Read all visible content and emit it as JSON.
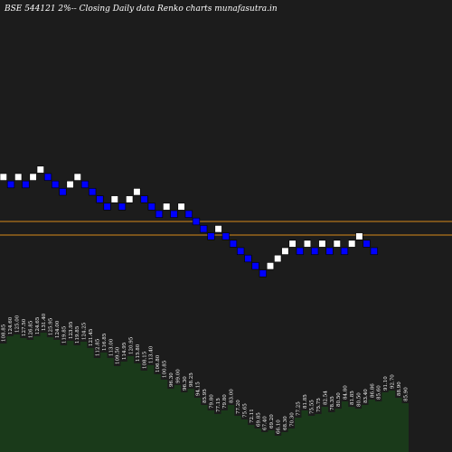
{
  "chart_data": {
    "type": "renko",
    "title": "BSE 544121 2%-- Closing Daily data Renko charts munafasutra.in",
    "colors": {
      "background": "#1c1c1c",
      "up_brick": "#ffffff",
      "down_brick": "#0000ff",
      "reference_line": "#d98a1a",
      "volume_area": "#1a3a1a"
    },
    "bricks": [
      {
        "dir": "up",
        "level": 0
      },
      {
        "dir": "down",
        "level": -1
      },
      {
        "dir": "up",
        "level": 0
      },
      {
        "dir": "down",
        "level": -1
      },
      {
        "dir": "up",
        "level": 0
      },
      {
        "dir": "up",
        "level": 1
      },
      {
        "dir": "down",
        "level": 0
      },
      {
        "dir": "down",
        "level": -1
      },
      {
        "dir": "down",
        "level": -2
      },
      {
        "dir": "up",
        "level": -1
      },
      {
        "dir": "up",
        "level": 0
      },
      {
        "dir": "down",
        "level": -1
      },
      {
        "dir": "down",
        "level": -2
      },
      {
        "dir": "down",
        "level": -3
      },
      {
        "dir": "down",
        "level": -4
      },
      {
        "dir": "up",
        "level": -3
      },
      {
        "dir": "down",
        "level": -4
      },
      {
        "dir": "up",
        "level": -3
      },
      {
        "dir": "up",
        "level": -2
      },
      {
        "dir": "down",
        "level": -3
      },
      {
        "dir": "down",
        "level": -4
      },
      {
        "dir": "down",
        "level": -5
      },
      {
        "dir": "up",
        "level": -4
      },
      {
        "dir": "down",
        "level": -5
      },
      {
        "dir": "up",
        "level": -4
      },
      {
        "dir": "down",
        "level": -5
      },
      {
        "dir": "down",
        "level": -6
      },
      {
        "dir": "down",
        "level": -7
      },
      {
        "dir": "down",
        "level": -8
      },
      {
        "dir": "up",
        "level": -7
      },
      {
        "dir": "down",
        "level": -8
      },
      {
        "dir": "down",
        "level": -9
      },
      {
        "dir": "down",
        "level": -10
      },
      {
        "dir": "down",
        "level": -11
      },
      {
        "dir": "down",
        "level": -12
      },
      {
        "dir": "down",
        "level": -13
      },
      {
        "dir": "up",
        "level": -12
      },
      {
        "dir": "up",
        "level": -11
      },
      {
        "dir": "up",
        "level": -10
      },
      {
        "dir": "up",
        "level": -9
      },
      {
        "dir": "down",
        "level": -10
      },
      {
        "dir": "up",
        "level": -9
      },
      {
        "dir": "down",
        "level": -10
      },
      {
        "dir": "up",
        "level": -9
      },
      {
        "dir": "down",
        "level": -10
      },
      {
        "dir": "up",
        "level": -9
      },
      {
        "dir": "down",
        "level": -10
      },
      {
        "dir": "up",
        "level": -9
      },
      {
        "dir": "up",
        "level": -8
      },
      {
        "dir": "down",
        "level": -9
      },
      {
        "dir": "down",
        "level": -10
      }
    ],
    "reference_lines": [
      121.4,
      118.25
    ],
    "price_labels": [
      "108.85",
      "124.60",
      "125.00",
      "127.50",
      "126.85",
      "124.65",
      "131.40",
      "125.95",
      "124.00",
      "119.85",
      "123.95",
      "119.85",
      "124.25",
      "121.45",
      "112.85",
      "116.85",
      "113.00",
      "109.50",
      "114.95",
      "120.95",
      "115.80",
      "108.15",
      "113.40",
      "106.80",
      "100.85",
      "96.30",
      "99.00",
      "96.30",
      "98.25",
      "94.15",
      "85.95",
      "79.80",
      "77.15",
      "79.80",
      "83.00",
      "77.20",
      "75.65",
      "72.11",
      "69.85",
      "67.40",
      "69.20",
      "66.10",
      "68.30",
      "70.30",
      "77.25",
      "81.85",
      "75.55",
      "75.75",
      "82.54",
      "78.35",
      "80.50",
      "84.80",
      "81.85",
      "80.50",
      "83.40",
      "86.86",
      "85.60",
      "91.10",
      "92.70",
      "88.90",
      "85.90"
    ],
    "volume_area_heights": [
      120,
      128,
      130,
      126,
      124,
      128,
      132,
      127,
      124,
      118,
      123,
      118,
      122,
      115,
      104,
      110,
      104,
      95,
      100,
      106,
      98,
      90,
      96,
      86,
      80,
      70,
      74,
      66,
      70,
      60,
      52,
      46,
      42,
      46,
      52,
      40,
      36,
      30,
      26,
      22,
      24,
      18,
      22,
      26,
      38,
      46,
      40,
      42,
      50,
      44,
      48,
      56,
      50,
      48,
      52,
      58,
      56,
      66,
      68,
      60,
      54
    ]
  }
}
